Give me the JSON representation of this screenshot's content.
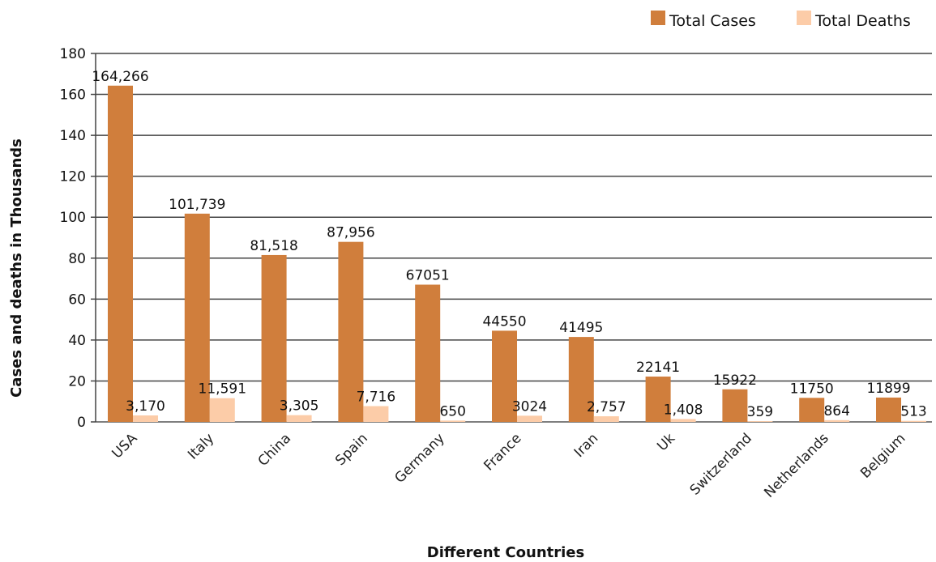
{
  "chart_data": {
    "type": "bar",
    "categories": [
      "USA",
      "Italy",
      "China",
      "Spain",
      "Germany",
      "France",
      "Iran",
      "Uk",
      "Switzerland",
      "Netherlands",
      "Belgium"
    ],
    "series": [
      {
        "name": "Total Cases",
        "color": "#D07E3C",
        "values": [
          164.266,
          101.739,
          81.518,
          87.956,
          67.051,
          44.55,
          41.495,
          22.141,
          15.922,
          11.75,
          11.899
        ],
        "labels": [
          "164,266",
          "101,739",
          "81,518",
          "87,956",
          "67051",
          "44550",
          "41495",
          "22141",
          "15922",
          "11750",
          "11899"
        ]
      },
      {
        "name": "Total Deaths",
        "color": "#FCCCA8",
        "values": [
          3.17,
          11.591,
          3.305,
          7.716,
          0.65,
          3.024,
          2.757,
          1.408,
          0.359,
          0.864,
          0.513
        ],
        "labels": [
          "3,170",
          "11,591",
          "3,305",
          "7,716",
          "650",
          "3024",
          "2,757",
          "1,408",
          "359",
          "864",
          "513"
        ]
      }
    ],
    "xlabel": "Different Countries",
    "ylabel": "Cases and deaths in Thousands",
    "ylim": [
      0,
      180
    ],
    "yticks": [
      0,
      20,
      40,
      60,
      80,
      100,
      120,
      140,
      160,
      180
    ],
    "grid": true,
    "legend_position": "top-right"
  }
}
